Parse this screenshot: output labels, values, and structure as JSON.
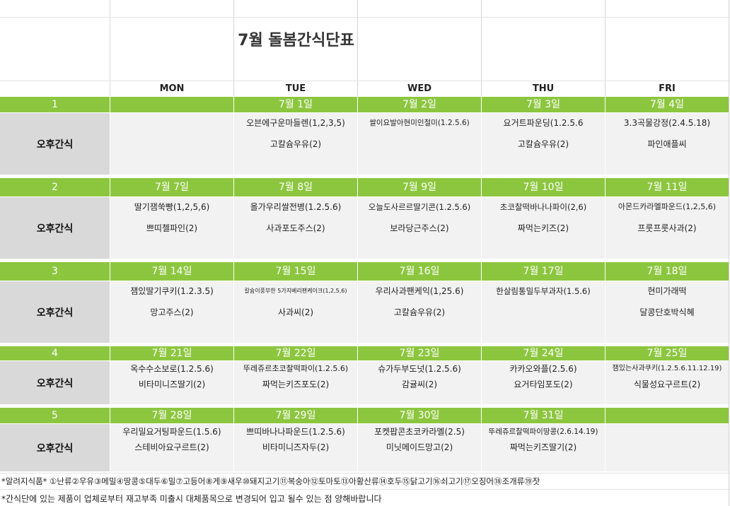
{
  "title": "7월 돌봄간식단표",
  "days": [
    "MON",
    "TUE",
    "WED",
    "THU",
    "FRI"
  ],
  "weeks": [
    {
      "num": "1",
      "label": "오후간식",
      "dates": [
        "",
        "7월 1일",
        "7월 2일",
        "7월 3일",
        "7월 4일"
      ],
      "items": [
        [
          "",
          ""
        ],
        [
          "오븐에구운마들렌(1,2,3,5)",
          "고칼슘우유(2)"
        ],
        [
          "쌀이요발아현미인절미(1.2.5.6)",
          ""
        ],
        [
          "요거트파운딩(1.2.5.6",
          "고칼슘우유(2)"
        ],
        [
          "3.3곡물강정(2.4.5.18)",
          "파인애플씨"
        ]
      ]
    },
    {
      "num": "2",
      "label": "오후간식",
      "dates": [
        "7월 7일",
        "7월 8일",
        "7월 9일",
        "7월 10일",
        "7월 11일"
      ],
      "items": [
        [
          "딸기잼쑥빵(1,2,5,6)",
          "쁘띠첼파인(2)"
        ],
        [
          "올가우리쌀전병(1.2.5.6)",
          "사과포도주스(2)"
        ],
        [
          "오늘도사르르딸기콘(1.2.5.6)",
          "보라당근주스(2)"
        ],
        [
          "초코찰떡바나나파이(2,6)",
          "짜먹는키즈(2)"
        ],
        [
          "아몬드카라멜파운드(1,2,5,6)",
          "프룻프룻사과(2)"
        ]
      ]
    },
    {
      "num": "3",
      "label": "오후간식",
      "dates": [
        "7월 14일",
        "7월 15일",
        "7월 16일",
        "7월 17일",
        "7월 18일"
      ],
      "items": [
        [
          "잼있딸기쿠키(1.2.3.5)",
          "망고주스(2)"
        ],
        [
          "칼슘이풍부한 5가지베리팬케이크(1,2,5,6)",
          "사과씨(2)"
        ],
        [
          "우리사과팬케익(1,25.6)",
          "고칼슘우유(2)"
        ],
        [
          "한살림통밀두부과자(1.5.6)",
          ""
        ],
        [
          "현미가래떡",
          "달콩단호박식혜"
        ]
      ]
    },
    {
      "num": "4",
      "label": "오후간식",
      "dates": [
        "7월 21일",
        "7월 22일",
        "7월 23일",
        "7월 24일",
        "7월 25일"
      ],
      "items": [
        [
          "옥수수소보로(1.2.5.6)",
          "비타미니즈딸기(2)"
        ],
        [
          "뚜레쥬르초코찰떡파이(1.2.5.6)",
          "짜먹는키즈포도(2)"
        ],
        [
          "슈가두부도넛(1.2.5.6)",
          "감귤씨(2)"
        ],
        [
          "카카오와플(2.5.6)",
          "요거타임포도(2)"
        ],
        [
          "잼있는사과쿠키(1.2.5.6.11.12.19)",
          "식물성요구르트(2)"
        ]
      ]
    },
    {
      "num": "5",
      "label": "오후간식",
      "dates": [
        "7월 28일",
        "7월 29일",
        "7월 30일",
        "7월 31일",
        ""
      ],
      "items": [
        [
          "우리밀요거팅파운드(1.5.6)",
          "스테비아요구르트(2)"
        ],
        [
          "쁘띠바나나파운드(1.2.5.6)",
          "비타미니즈자두(2)"
        ],
        [
          "포켓팝콘초코카라멜(2.5)",
          "미닛메이드망고(2)"
        ],
        [
          "뚜레쥬르찰떡파이땅콩(2.6.14.19)",
          "짜먹는키즈딸기(2)"
        ],
        [
          "",
          ""
        ]
      ]
    }
  ],
  "notes": {
    "allergy": "*알려지식품* ①난류②우유③메밀④땅콩⑤대두⑥밀⑦고등어⑧게⑨새우⑩돼지고기⑪복숭아⑫토마토⑬아황산류⑭호두⑮닭고기⑯쇠고기⑰오징어⑱조개류⑲잣",
    "notice": "*간식단에 있는 제품이 업체로부터 재고부족 미출시 대체품목으로 변경되어 입고 될수 있는 점 양해바랍니다"
  }
}
